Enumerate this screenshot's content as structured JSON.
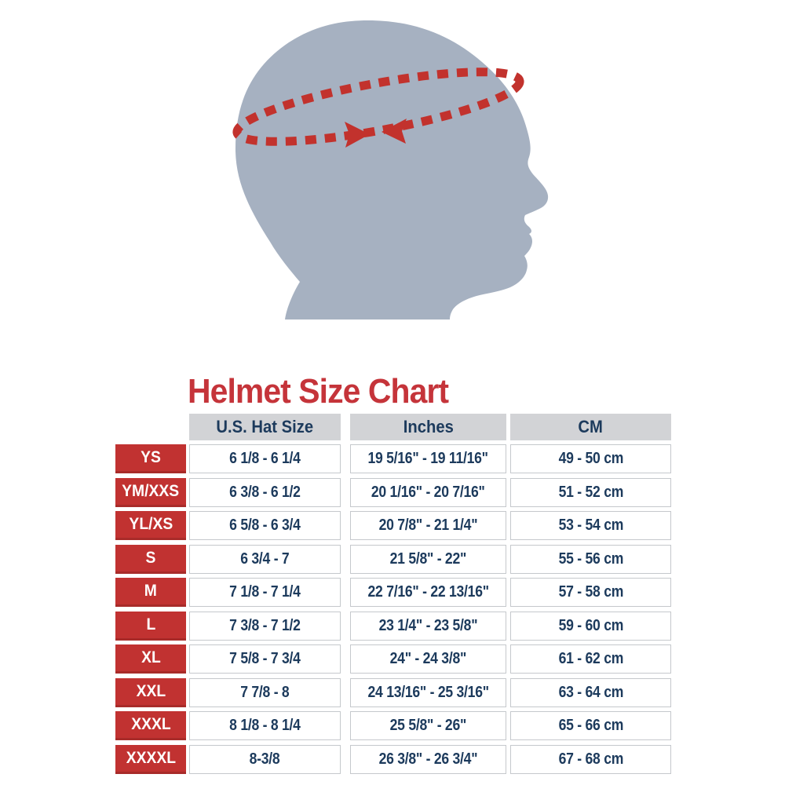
{
  "colors": {
    "page_bg": "#ffffff",
    "title": "#c5343a",
    "head": "#a6b1c1",
    "tape": "#c2322d",
    "label_bg": "#c13231",
    "label_border": "#a82b29",
    "label_text": "#ffffff",
    "header_bg": "#d2d3d6",
    "cell_text": "#1c3a5c",
    "cell_bg": "#ffffff",
    "cell_border": "#c5c8cc"
  },
  "figure": {
    "illustration": "head-profile-silhouette-with-dashed-measuring-tape"
  },
  "chart_data": {
    "type": "table",
    "title": "Helmet Size Chart",
    "columns": [
      "U.S. Hat Size",
      "Inches",
      "CM"
    ],
    "row_keys": [
      "size",
      "us_hat_size",
      "inches",
      "cm"
    ],
    "rows": [
      {
        "size": "YS",
        "us_hat_size": "6 1/8 - 6 1/4",
        "inches": "19 5/16\" - 19 11/16\"",
        "cm": "49 - 50 cm"
      },
      {
        "size": "YM/XXS",
        "us_hat_size": "6 3/8 - 6 1/2",
        "inches": "20 1/16\" - 20 7/16\"",
        "cm": "51 - 52 cm"
      },
      {
        "size": "YL/XS",
        "us_hat_size": "6 5/8 - 6 3/4",
        "inches": "20 7/8\" - 21 1/4\"",
        "cm": "53 - 54 cm"
      },
      {
        "size": "S",
        "us_hat_size": "6 3/4 - 7",
        "inches": "21 5/8\" - 22\"",
        "cm": "55 - 56 cm"
      },
      {
        "size": "M",
        "us_hat_size": "7 1/8 - 7 1/4",
        "inches": "22 7/16\" - 22 13/16\"",
        "cm": "57 - 58 cm"
      },
      {
        "size": "L",
        "us_hat_size": "7 3/8 - 7 1/2",
        "inches": "23 1/4\" - 23 5/8\"",
        "cm": "59 - 60 cm"
      },
      {
        "size": "XL",
        "us_hat_size": "7 5/8 - 7 3/4",
        "inches": "24\" - 24 3/8\"",
        "cm": "61 - 62 cm"
      },
      {
        "size": "XXL",
        "us_hat_size": "7 7/8 - 8",
        "inches": "24 13/16\" - 25 3/16\"",
        "cm": "63 - 64 cm"
      },
      {
        "size": "XXXL",
        "us_hat_size": "8 1/8 - 8 1/4",
        "inches": "25 5/8\" - 26\"",
        "cm": "65 - 66 cm"
      },
      {
        "size": "XXXXL",
        "us_hat_size": "8-3/8",
        "inches": "26 3/8\" - 26 3/4\"",
        "cm": "67 - 68 cm"
      }
    ]
  }
}
